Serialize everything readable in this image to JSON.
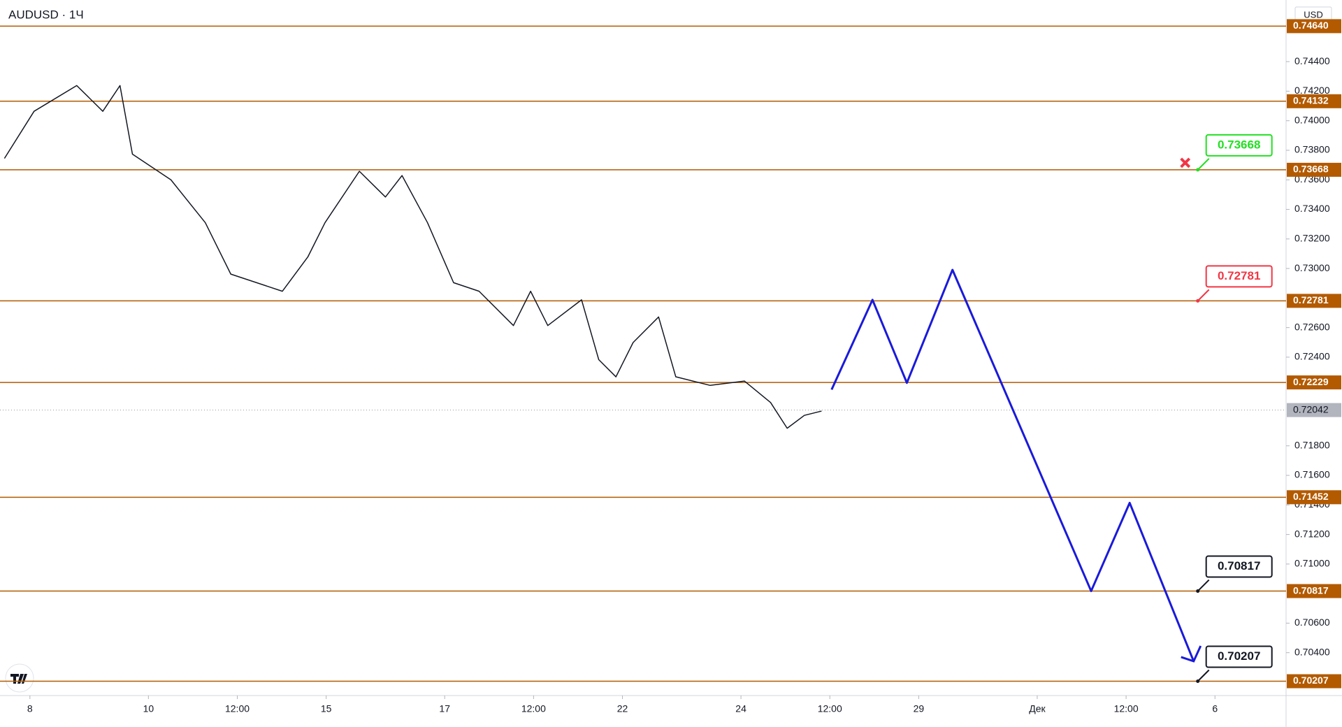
{
  "chart_data": {
    "type": "line",
    "title": "AUDUSD · 1Ч",
    "currency": "USD",
    "xlim": [
      -0.505,
      21.2
    ],
    "ylim": [
      0.7011,
      0.74817
    ],
    "xticks": [
      {
        "value": 0,
        "label": "8"
      },
      {
        "value": 2,
        "label": "10"
      },
      {
        "value": 3.5,
        "label": "12:00"
      },
      {
        "value": 5,
        "label": "15"
      },
      {
        "value": 7,
        "label": "17"
      },
      {
        "value": 8.5,
        "label": "12:00"
      },
      {
        "value": 10,
        "label": "22"
      },
      {
        "value": 12,
        "label": "24"
      },
      {
        "value": 13.5,
        "label": "12:00"
      },
      {
        "value": 15,
        "label": "29"
      },
      {
        "value": 17,
        "label": "Дек"
      },
      {
        "value": 18.5,
        "label": "12:00"
      },
      {
        "value": 20,
        "label": "6"
      }
    ],
    "yticks": [
      {
        "value": 0.744,
        "label": "0.74400"
      },
      {
        "value": 0.742,
        "label": "0.74200"
      },
      {
        "value": 0.74,
        "label": "0.74000"
      },
      {
        "value": 0.738,
        "label": "0.73800"
      },
      {
        "value": 0.736,
        "label": "0.73600"
      },
      {
        "value": 0.734,
        "label": "0.73400"
      },
      {
        "value": 0.732,
        "label": "0.73200"
      },
      {
        "value": 0.73,
        "label": "0.73000"
      },
      {
        "value": 0.726,
        "label": "0.72600"
      },
      {
        "value": 0.724,
        "label": "0.72400"
      },
      {
        "value": 0.718,
        "label": "0.71800"
      },
      {
        "value": 0.716,
        "label": "0.71600"
      },
      {
        "value": 0.714,
        "label": "0.71400"
      },
      {
        "value": 0.712,
        "label": "0.71200"
      },
      {
        "value": 0.71,
        "label": "0.71000"
      },
      {
        "value": 0.706,
        "label": "0.70600"
      },
      {
        "value": 0.704,
        "label": "0.70400"
      }
    ],
    "levels": [
      {
        "value": 0.7464,
        "label": "0.74640"
      },
      {
        "value": 0.74132,
        "label": "0.74132"
      },
      {
        "value": 0.73668,
        "label": "0.73668"
      },
      {
        "value": 0.72781,
        "label": "0.72781"
      },
      {
        "value": 0.72229,
        "label": "0.72229"
      },
      {
        "value": 0.71452,
        "label": "0.71452"
      },
      {
        "value": 0.70817,
        "label": "0.70817"
      },
      {
        "value": 0.70207,
        "label": "0.70207"
      }
    ],
    "level_color": "#b35a00",
    "last": {
      "value": 0.72042,
      "label": "0.72042"
    },
    "series": [
      {
        "color": "#131722",
        "x": [
          -0.43,
          0.07,
          0.79,
          1.23,
          1.52,
          1.73,
          2.38,
          2.96,
          3.39,
          4.26,
          4.69,
          4.98,
          5.56,
          6.0,
          6.28,
          6.71,
          7.15,
          7.58,
          8.16,
          8.45,
          8.74,
          9.31,
          9.6,
          9.89,
          10.18,
          10.61,
          10.9,
          11.48,
          12.06,
          12.5,
          12.78,
          13.07,
          13.36
        ],
        "values": [
          0.73745,
          0.74064,
          0.74238,
          0.74064,
          0.74238,
          0.73774,
          0.736,
          0.7331,
          0.72962,
          0.72846,
          0.73078,
          0.7331,
          0.73658,
          0.73484,
          0.73629,
          0.7331,
          0.72904,
          0.72846,
          0.72614,
          0.72846,
          0.72614,
          0.72788,
          0.72383,
          0.72267,
          0.72499,
          0.72672,
          0.72267,
          0.72209,
          0.72238,
          0.72093,
          0.71919,
          0.72006,
          0.72035
        ]
      },
      {
        "color": "#1a1adb",
        "x": [
          13.53,
          14.22,
          14.8,
          15.57,
          17.91,
          18.56,
          19.64
        ],
        "values": [
          0.7218,
          0.72788,
          0.72226,
          0.72991,
          0.70817,
          0.71414,
          0.70342
        ]
      }
    ],
    "annotations": [
      {
        "text": "0.73668",
        "value": 0.73668,
        "x": 19.71,
        "color": "#22e022"
      },
      {
        "text": "0.72781",
        "value": 0.72781,
        "x": 19.71,
        "color": "#f23645"
      },
      {
        "text": "0.70817",
        "value": 0.70817,
        "x": 19.71,
        "color": "#131722"
      },
      {
        "text": "0.70207",
        "value": 0.70207,
        "x": 19.71,
        "color": "#131722"
      }
    ]
  }
}
